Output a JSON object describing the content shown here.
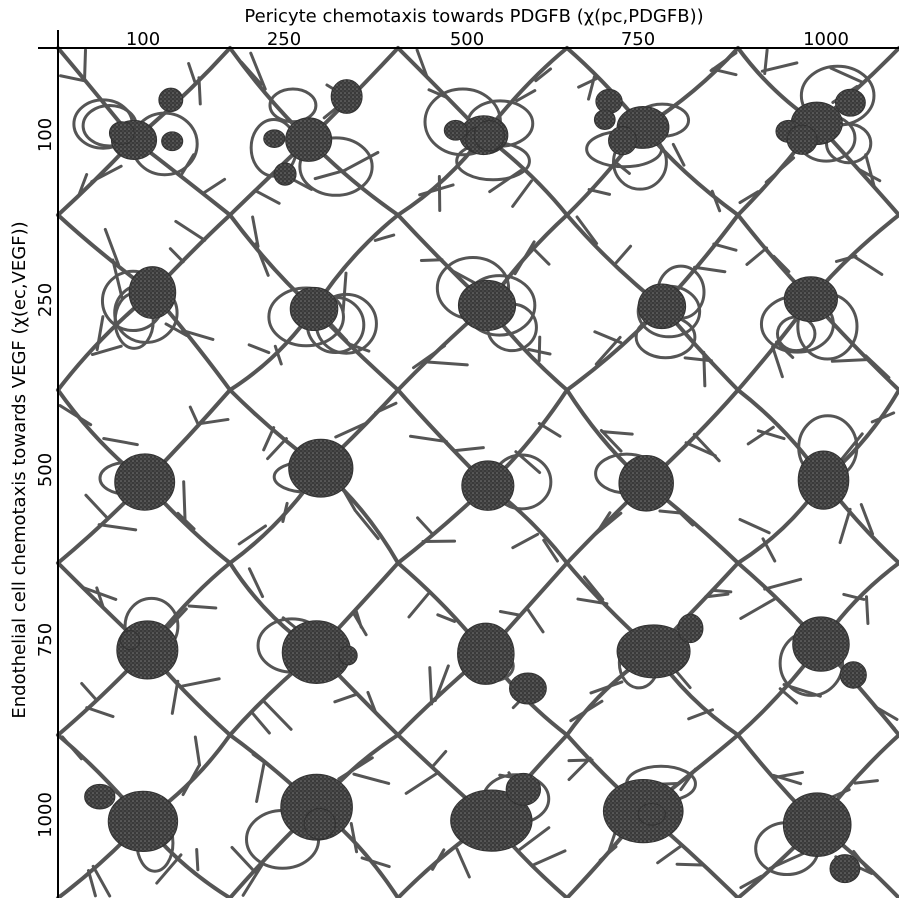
{
  "header": {
    "title": "Pericyte chemotaxis towards PDGFB (χ(pc,PDGFB))"
  },
  "columns": {
    "labels": [
      "100",
      "250",
      "500",
      "750",
      "1000"
    ]
  },
  "rows": {
    "title": "Endothelial cell chemotaxis towards VEGF (χ(ec,VEGF))",
    "labels": [
      "100",
      "250",
      "500",
      "750",
      "1000"
    ]
  }
}
